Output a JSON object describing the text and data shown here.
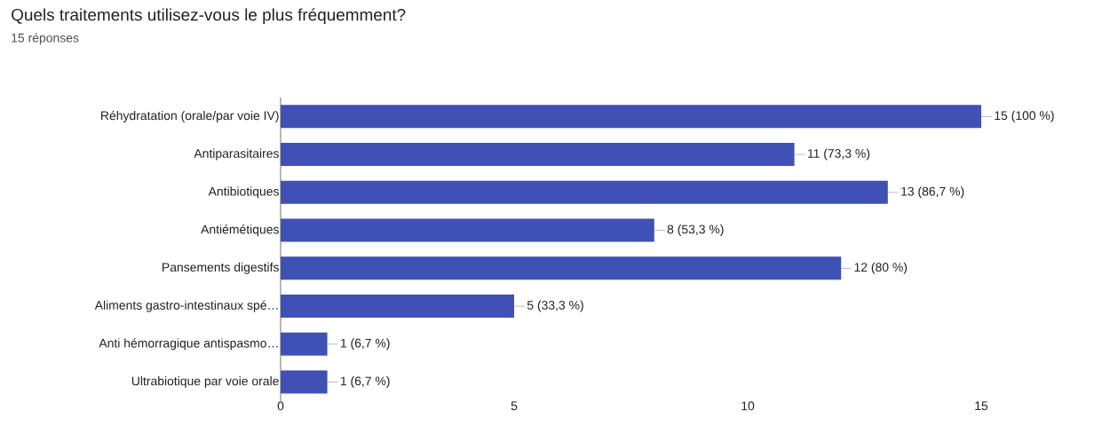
{
  "chart_data": {
    "type": "bar",
    "orientation": "horizontal",
    "title": "Quels traitements utilisez-vous le plus fréquemment?",
    "subtitle": "15 réponses",
    "categories": [
      "Réhydratation (orale/par voie IV)",
      "Antiparasitaires",
      "Antibiotiques",
      "Antiémétiques",
      "Pansements digestifs",
      "Aliments gastro-intestinaux spé…",
      "Anti hémorragique antispasmo…",
      "Ultrabiotique par voie orale"
    ],
    "values": [
      15,
      11,
      13,
      8,
      12,
      5,
      1,
      1
    ],
    "value_labels": [
      "15 (100 %)",
      "11 (73,3 %)",
      "13 (86,7 %)",
      "8 (53,3 %)",
      "12 (80 %)",
      "5 (33,3 %)",
      "1 (6,7 %)",
      "1 (6,7 %)"
    ],
    "color": "#3f51b5",
    "xlim": [
      0,
      15
    ],
    "xticks": [
      0,
      5,
      10,
      15
    ],
    "grid": false
  }
}
